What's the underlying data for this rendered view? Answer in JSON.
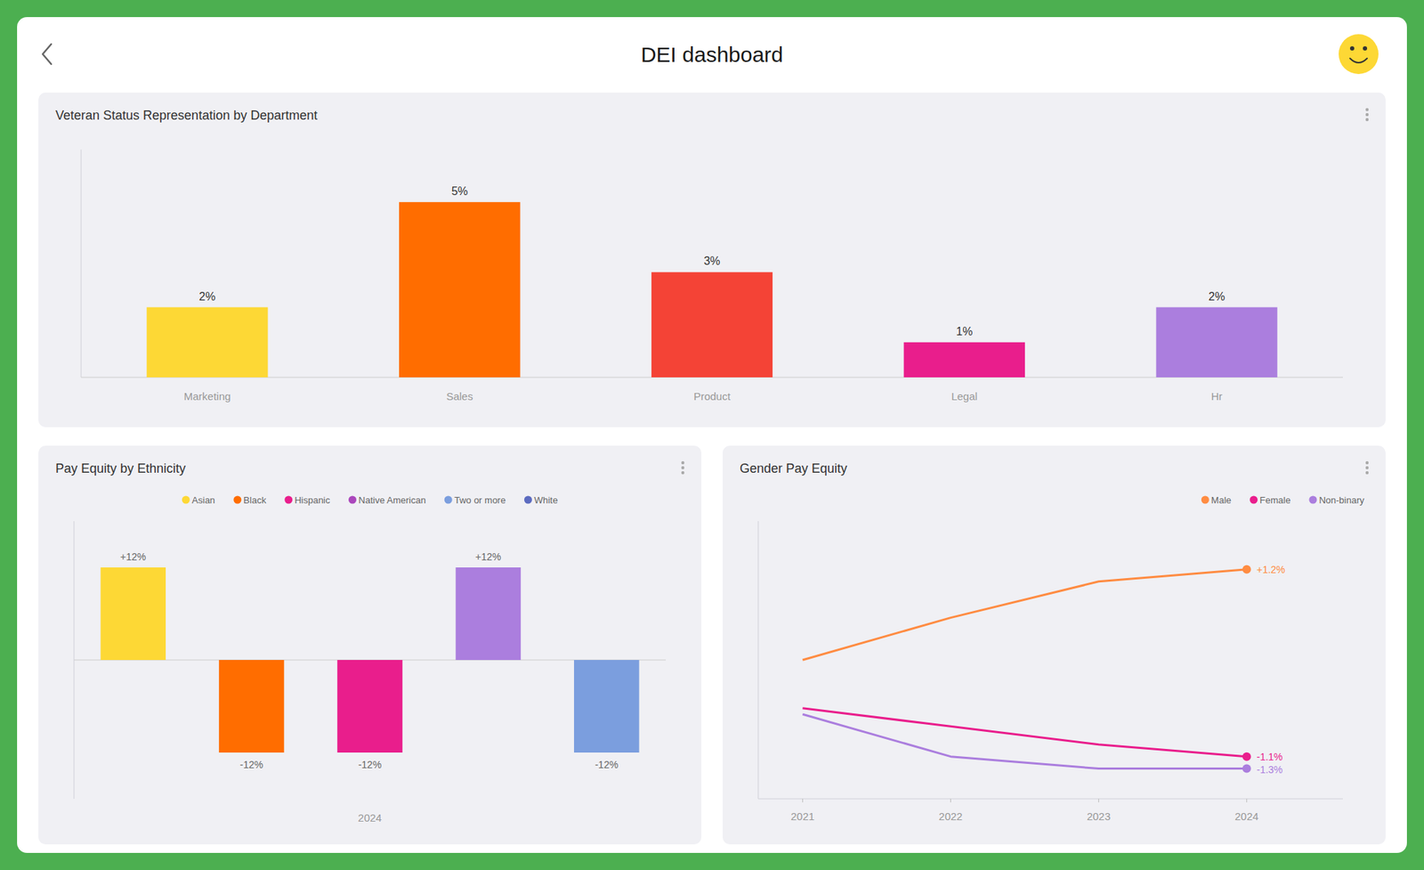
{
  "title": "DEI dashboard",
  "chart_data": [
    {
      "type": "bar",
      "title": "Veteran Status Representation by Department",
      "categories": [
        "Marketing",
        "Sales",
        "Product",
        "Legal",
        "Hr"
      ],
      "values": [
        2,
        5,
        3,
        1,
        2
      ],
      "value_labels": [
        "2%",
        "5%",
        "3%",
        "1%",
        "2%"
      ],
      "colors": [
        "#FDD835",
        "#FF6D00",
        "#F44336",
        "#E91E8C",
        "#AB7EDE"
      ],
      "ylim": [
        0,
        6.5
      ],
      "yticks": [],
      "data_labels": true,
      "tick_labels": "x"
    },
    {
      "type": "bar",
      "title": "Pay Equity by Ethnicity",
      "categories": [
        "2024"
      ],
      "series": [
        {
          "name": "Asian",
          "color": "#FDD835",
          "colors": [
            "#FDD835"
          ],
          "values": [
            12
          ],
          "value_labels": [
            "+12%"
          ]
        },
        {
          "name": "Black",
          "color": "#FF6D00",
          "colors": [
            "#FF6D00"
          ],
          "values": [
            -12
          ],
          "value_labels": [
            "-12%"
          ]
        },
        {
          "name": "Hispanic",
          "color": "#E91E8C",
          "colors": [
            "#E91E8C"
          ],
          "values": [
            -12
          ],
          "value_labels": [
            "-12%"
          ]
        },
        {
          "name": "Native American",
          "color": "#AB47BC",
          "colors": [
            "#AB7EDE"
          ],
          "values": [
            12
          ],
          "value_labels": [
            "+12%"
          ]
        },
        {
          "name": "Two or more",
          "color": "#7B9EDE",
          "colors": [
            "#7B9EDE"
          ],
          "values": [
            -12
          ],
          "value_labels": [
            "-12%"
          ]
        },
        {
          "name": "White",
          "color": "#5C6BC0",
          "values": [
            null
          ]
        }
      ],
      "ylim": [
        -18,
        18
      ],
      "yticks": [],
      "data_labels": true,
      "tick_labels": "x"
    },
    {
      "type": "line",
      "title": "Gender Pay Equity",
      "x": [
        2021,
        2022,
        2023,
        2024
      ],
      "series": [
        {
          "name": "Male",
          "color": "#FF8C42",
          "values": [
            1.05,
            1.12,
            1.18,
            1.2
          ],
          "annotation": "+1.2%"
        },
        {
          "name": "Female",
          "color": "#E91E8C",
          "values": [
            0.97,
            0.94,
            0.91,
            0.89
          ],
          "annotation": "-1.1%"
        },
        {
          "name": "Non-binary",
          "color": "#AB7EDE",
          "values": [
            0.96,
            0.89,
            0.87,
            0.87
          ],
          "annotation": "-1.3%"
        }
      ],
      "xlim": [
        2020.7,
        2024.65
      ],
      "xticks": [
        2021,
        2022,
        2023,
        2024
      ],
      "ylim": [
        0.82,
        1.28
      ],
      "yticks": [],
      "tick_labels": "x"
    }
  ]
}
